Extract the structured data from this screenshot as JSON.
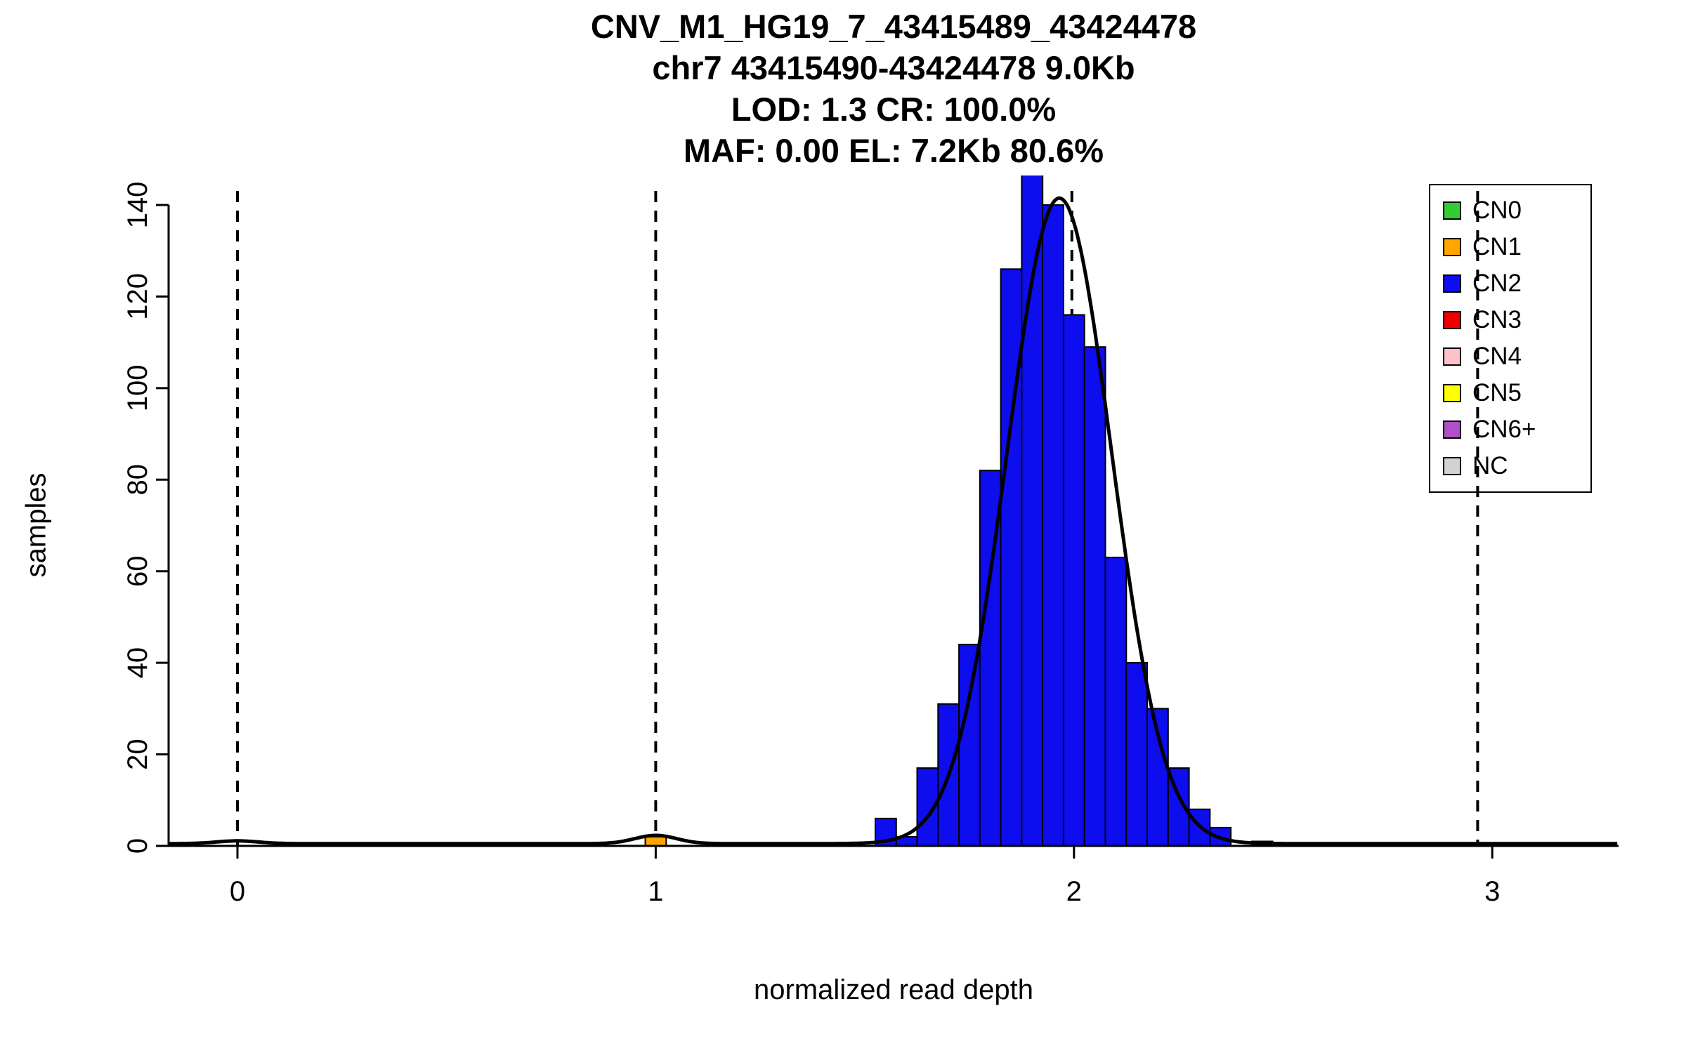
{
  "chart_data": {
    "type": "bar",
    "title_lines": [
      "CNV_M1_HG19_7_43415489_43424478",
      "chr7 43415490-43424478 9.0Kb",
      "LOD: 1.3 CR: 100.0%",
      "MAF: 0.00 EL: 7.2Kb 80.6%"
    ],
    "xlabel": "normalized read depth",
    "ylabel": "samples",
    "xlim": [
      -0.165,
      3.3
    ],
    "ylim": [
      0,
      147
    ],
    "xticks": [
      0,
      1,
      2,
      3
    ],
    "yticks": [
      0,
      20,
      40,
      60,
      80,
      100,
      120,
      140
    ],
    "grid": false,
    "legend_position": "top-right",
    "dashed_lines_x": [
      0,
      1,
      1.995,
      2.965
    ],
    "bin_width": 0.05,
    "bars": [
      {
        "x0": 0.975,
        "count": 2,
        "cn": "CN1"
      },
      {
        "x0": 1.525,
        "count": 6,
        "cn": "CN2"
      },
      {
        "x0": 1.575,
        "count": 2,
        "cn": "CN2"
      },
      {
        "x0": 1.625,
        "count": 17,
        "cn": "CN2"
      },
      {
        "x0": 1.675,
        "count": 31,
        "cn": "CN2"
      },
      {
        "x0": 1.725,
        "count": 44,
        "cn": "CN2"
      },
      {
        "x0": 1.775,
        "count": 82,
        "cn": "CN2"
      },
      {
        "x0": 1.825,
        "count": 126,
        "cn": "CN2"
      },
      {
        "x0": 1.875,
        "count": 147,
        "cn": "CN2"
      },
      {
        "x0": 1.925,
        "count": 140,
        "cn": "CN2"
      },
      {
        "x0": 1.975,
        "count": 116,
        "cn": "CN2"
      },
      {
        "x0": 2.025,
        "count": 109,
        "cn": "CN2"
      },
      {
        "x0": 2.075,
        "count": 63,
        "cn": "CN2"
      },
      {
        "x0": 2.125,
        "count": 40,
        "cn": "CN2"
      },
      {
        "x0": 2.175,
        "count": 30,
        "cn": "CN2"
      },
      {
        "x0": 2.225,
        "count": 17,
        "cn": "CN2"
      },
      {
        "x0": 2.275,
        "count": 8,
        "cn": "CN2"
      },
      {
        "x0": 2.325,
        "count": 4,
        "cn": "CN2"
      },
      {
        "x0": 2.425,
        "count": 1,
        "cn": "CN2"
      }
    ],
    "curve": {
      "baseline": 0.5,
      "components": [
        {
          "mean": 0.0,
          "peak": 0.6,
          "sd": 0.05
        },
        {
          "mean": 1.0,
          "peak": 1.8,
          "sd": 0.05
        },
        {
          "mean": 1.965,
          "peak": 141,
          "sd": 0.125
        }
      ]
    },
    "legend": [
      {
        "label": "CN0",
        "color": "#33cc33"
      },
      {
        "label": "CN1",
        "color": "#ffa500"
      },
      {
        "label": "CN2",
        "color": "#0d0dee"
      },
      {
        "label": "CN3",
        "color": "#ee0000"
      },
      {
        "label": "CN4",
        "color": "#ffc0cb"
      },
      {
        "label": "CN5",
        "color": "#ffff00"
      },
      {
        "label": "CN6+",
        "color": "#b04fc8"
      },
      {
        "label": "NC",
        "color": "#d3d3d3"
      }
    ],
    "colors": {
      "axis": "#000000",
      "curve": "#000000",
      "bar_outline": "#000000"
    }
  }
}
